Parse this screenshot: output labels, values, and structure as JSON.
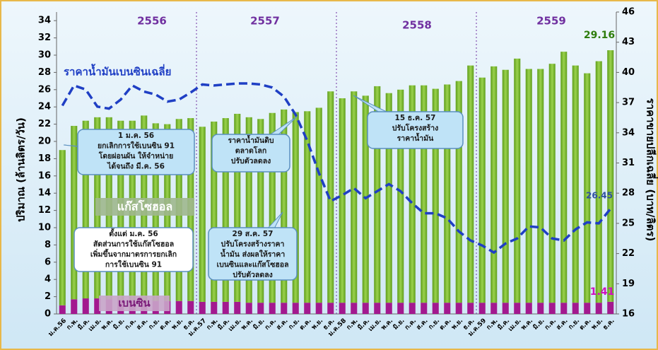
{
  "chart_data": {
    "type": "stacked-bar-line",
    "ylabel": "ปริมาณ (ล้านลิตร/วัน)",
    "y2label": "ราคาขายปลีกเฉลี่ย (บาท/ลิตร)",
    "categories": [
      "ม.ค.56",
      "ก.พ.",
      "มี.ค.",
      "เม.ย.",
      "พ.ค.",
      "มิ.ย.",
      "ก.ค.",
      "ส.ค.",
      "ก.ย.",
      "ต.ค.",
      "พ.ย.",
      "ธ.ค.",
      "ม.ค.57",
      "ก.พ.",
      "มี.ค.",
      "เม.ย.",
      "พ.ค.",
      "มิ.ย.",
      "ก.ค.",
      "ส.ค.",
      "ก.ย.",
      "ต.ค.",
      "พ.ย.",
      "ธ.ค.",
      "ม.ค.58",
      "ก.พ.",
      "มี.ค.",
      "เม.ย.",
      "พ.ค.",
      "มิ.ย.",
      "ก.ค.",
      "ส.ค.",
      "ก.ย.",
      "ต.ค.",
      "พ.ย.",
      "ธ.ค.",
      "ม.ค.59",
      "ก.พ.",
      "มี.ค.",
      "เม.ย.",
      "พ.ค.",
      "มิ.ย.",
      "ก.ค.",
      "ส.ค.",
      "ก.ย.",
      "ต.ค.",
      "พ.ย.",
      "ธ.ค."
    ],
    "years": [
      "2556",
      "2557",
      "2558",
      "2559"
    ],
    "series": [
      {
        "name": "เบนซิน",
        "color": "#a3198f",
        "kind": "bar",
        "values": [
          1.0,
          1.7,
          1.8,
          1.8,
          1.7,
          1.6,
          1.6,
          1.5,
          1.5,
          1.5,
          1.5,
          1.5,
          1.4,
          1.4,
          1.4,
          1.4,
          1.3,
          1.3,
          1.3,
          1.3,
          1.3,
          1.3,
          1.3,
          1.3,
          1.3,
          1.3,
          1.3,
          1.3,
          1.3,
          1.3,
          1.3,
          1.3,
          1.3,
          1.3,
          1.3,
          1.3,
          1.3,
          1.3,
          1.3,
          1.3,
          1.3,
          1.3,
          1.3,
          1.3,
          1.3,
          1.3,
          1.3,
          1.41
        ]
      },
      {
        "name": "แก๊สโซฮอล",
        "color": "#7cbb33",
        "kind": "bar",
        "values": [
          18.0,
          20.1,
          20.6,
          21.0,
          21.1,
          20.8,
          20.8,
          21.5,
          20.6,
          20.5,
          21.1,
          21.2,
          20.3,
          20.9,
          21.3,
          21.8,
          21.5,
          21.3,
          22.0,
          22.4,
          22.1,
          22.2,
          22.6,
          24.5,
          23.7,
          24.5,
          24.0,
          25.1,
          24.3,
          24.7,
          25.2,
          25.2,
          24.8,
          25.3,
          25.7,
          27.5,
          26.1,
          27.4,
          27.0,
          28.3,
          27.1,
          27.1,
          27.7,
          29.1,
          27.5,
          26.6,
          28.0,
          29.16
        ]
      },
      {
        "name": "ราคาน้ำมันเบนซินเฉลี่ย",
        "color": "#1f3fc4",
        "kind": "line",
        "axis": "y2",
        "values": [
          36.7,
          38.7,
          38.3,
          36.6,
          36.4,
          37.3,
          38.7,
          38.1,
          37.8,
          37.1,
          37.3,
          38.0,
          38.8,
          38.7,
          38.8,
          38.9,
          38.9,
          38.8,
          38.5,
          37.6,
          35.8,
          33.2,
          30.0,
          27.2,
          27.8,
          28.5,
          27.5,
          28.2,
          28.9,
          28.2,
          27.0,
          26.0,
          26.0,
          25.5,
          24.2,
          23.3,
          22.8,
          22.1,
          23.0,
          23.5,
          24.7,
          24.6,
          23.5,
          23.3,
          24.4,
          25.1,
          25.0,
          26.45
        ]
      }
    ],
    "ylim": [
      0,
      35
    ],
    "yticks": [
      0,
      2,
      4,
      6,
      8,
      10,
      12,
      14,
      16,
      18,
      20,
      22,
      24,
      26,
      28,
      30,
      32,
      34
    ],
    "y2lim": [
      16,
      46
    ],
    "y2ticks": [
      16,
      19,
      22,
      25,
      28,
      31,
      34,
      37,
      40,
      43,
      46
    ],
    "annotations": [
      {
        "lines": [
          "1 ม.ค. 56",
          "ยกเลิกการใช้เบนซิน 91",
          "โดยผ่อนผัน ให้จำหน่าย",
          "ได้จนถึง มี.ค. 56"
        ]
      },
      {
        "lines": [
          "ตั้งแต่ ม.ค. 56",
          "สัดส่วนการใช้แก๊สโซฮอล",
          "เพิ่มขึ้นจากมาตรการยกเลิก",
          "การใช้เบนซิน 91"
        ]
      },
      {
        "lines": [
          "ราคาน้ำมันดิบ",
          "ตลาดโลก",
          "ปรับตัวลดลง"
        ]
      },
      {
        "lines": [
          "29 ส.ค. 57",
          "ปรับโครงสร้างราคา",
          "น้ำมัน ส่งผลให้ราคา",
          "เบนซินและแก๊สโซฮอล",
          "ปรับตัวลดลง"
        ]
      },
      {
        "lines": [
          "15 ธ.ค. 57",
          "ปรับโครงสร้าง",
          "ราคาน้ำมัน"
        ]
      }
    ]
  }
}
